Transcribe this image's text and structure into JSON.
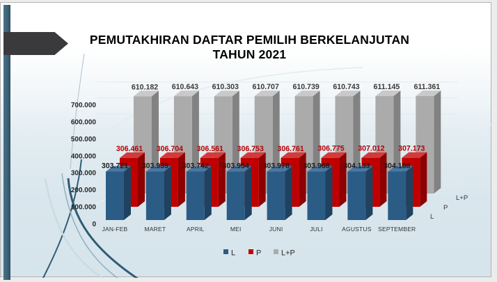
{
  "slide": {
    "title_line1": "PEMUTAKHIRAN DAFTAR PEMILIH BERKELANJUTAN",
    "title_line2": "TAHUN 2021"
  },
  "chart_data": {
    "type": "bar",
    "variant": "3d-clustered-column",
    "title": "PEMUTAKHIRAN DAFTAR PEMILIH BERKELANJUTAN TAHUN 2021",
    "categories": [
      "JAN-FEB",
      "MARET",
      "APRIL",
      "MEI",
      "JUNI",
      "JULI",
      "AGUSTUS",
      "SEPTEMBER"
    ],
    "series": [
      {
        "name": "L",
        "values": [
          303721,
          303939,
          303742,
          303954,
          303978,
          303968,
          304133,
          304188
        ]
      },
      {
        "name": "P",
        "values": [
          306461,
          306704,
          306561,
          306753,
          306761,
          306775,
          307012,
          307173
        ]
      },
      {
        "name": "L+P",
        "values": [
          610182,
          610643,
          610303,
          610707,
          610739,
          610743,
          611145,
          611361
        ]
      }
    ],
    "y_axis": {
      "min": 0,
      "max": 700000,
      "step": 100000,
      "tick_labels": [
        "0",
        "100.000",
        "200.000",
        "300.000",
        "400.000",
        "500.000",
        "600.000",
        "700.000"
      ]
    },
    "depth_axis_labels": [
      "L",
      "P",
      "L+P"
    ],
    "legend": {
      "position": "bottom",
      "entries": [
        "L",
        "P",
        "L+P"
      ]
    },
    "gridlines": true,
    "data_labels": true,
    "number_format": "thousands-dot"
  },
  "colors": {
    "accent_band": "#3E6377",
    "arrow": "#3A3A3C",
    "title_text": "#000000",
    "gridline": "#E3EAEE",
    "axis_text": "#262626",
    "category_text": "#333333",
    "depth_label_text": "#333333",
    "legend_text": "#262626",
    "series": [
      {
        "name": "L",
        "front": "#2B5C85",
        "top": "#4A78A2",
        "side": "#1E425F",
        "label": "#1C1C1C"
      },
      {
        "name": "P",
        "front": "#C00000",
        "top": "#D23B3B",
        "side": "#8E0000",
        "label": "#B40000"
      },
      {
        "name": "L+P",
        "front": "#ABABAB",
        "top": "#C9C9C9",
        "side": "#828282",
        "label": "#3A3A3A"
      }
    ]
  }
}
